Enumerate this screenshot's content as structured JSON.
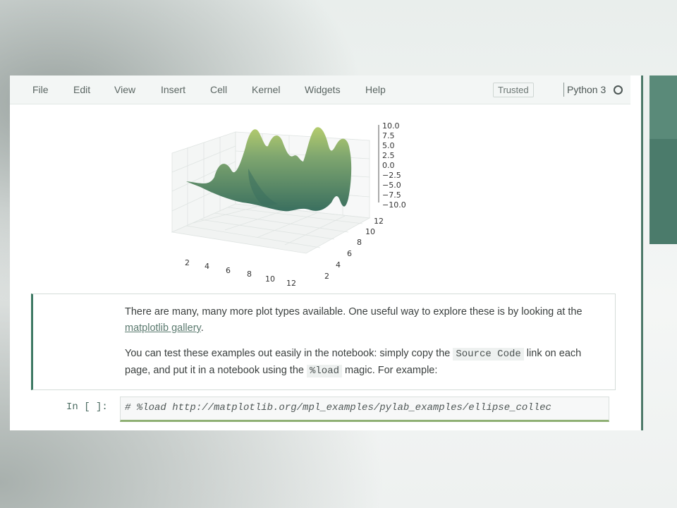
{
  "menubar": {
    "items": [
      "File",
      "Edit",
      "View",
      "Insert",
      "Cell",
      "Kernel",
      "Widgets",
      "Help"
    ],
    "trusted": "Trusted",
    "kernel": "Python 3"
  },
  "plot": {
    "z_ticks": [
      "10.0",
      "7.5",
      "5.0",
      "2.5",
      "0.0",
      "−2.5",
      "−5.0",
      "−7.5",
      "−10.0"
    ],
    "x_ticks": [
      "2",
      "4",
      "6",
      "8",
      "10",
      "12"
    ],
    "y_ticks": [
      "2",
      "4",
      "6",
      "8",
      "10",
      "12"
    ],
    "colors": {
      "surface_dark": "#3f7a65",
      "surface_light": "#a8c46a"
    }
  },
  "markdown": {
    "p1_text": "There are many, many more plot types available. One useful way to explore these is by looking at the ",
    "p1_link": "matplotlib gallery",
    "p1_end": ".",
    "p2_a": "You can test these examples out easily in the notebook: simply copy the ",
    "p2_code1": "Source Code",
    "p2_b": " link on each page, and put it in a notebook using the ",
    "p2_code2": "%load",
    "p2_c": " magic. For example:"
  },
  "code_cell": {
    "prompt": "In [ ]:",
    "source": "# %load http://matplotlib.org/mpl_examples/pylab_examples/ellipse_collec"
  }
}
